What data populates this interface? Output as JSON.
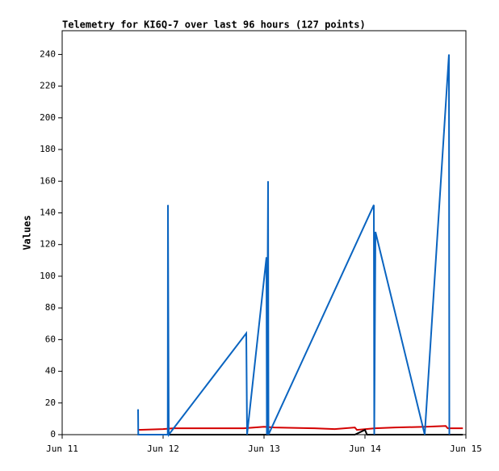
{
  "chart_data": {
    "type": "line",
    "title": "Telemetry for KI6Q-7 over last 96 hours (127 points)",
    "y_label": "Values",
    "xlim": [
      11,
      15
    ],
    "xticks": [
      {
        "value": 11,
        "label": "Jun 11"
      },
      {
        "value": 12,
        "label": "Jun 12"
      },
      {
        "value": 13,
        "label": "Jun 13"
      },
      {
        "value": 14,
        "label": "Jun 14"
      },
      {
        "value": 15,
        "label": "Jun 15"
      }
    ],
    "ylim": [
      0,
      255
    ],
    "yticks": [
      0,
      20,
      40,
      60,
      80,
      100,
      120,
      140,
      160,
      180,
      200,
      220,
      240
    ],
    "series": [
      {
        "color": "#d40000",
        "x": [
          11.75,
          12.0,
          12.1,
          12.8,
          13.0,
          13.1,
          13.5,
          13.7,
          13.9,
          13.92,
          14.1,
          14.3,
          14.6,
          14.8,
          14.82,
          14.97
        ],
        "values": [
          3,
          3.5,
          4,
          4,
          5,
          4.5,
          4,
          3.5,
          4.5,
          3,
          4,
          4.5,
          5,
          5.5,
          4,
          4
        ]
      },
      {
        "color": "#000000",
        "x": [
          11.75,
          13.9,
          14.0,
          14.02,
          14.97
        ],
        "values": [
          0,
          0,
          3,
          0,
          0
        ]
      },
      {
        "color": "#0a64c0",
        "x": [
          11.752,
          11.754,
          12.046,
          12.048,
          12.056,
          12.824,
          12.832,
          13.024,
          13.028,
          13.04,
          13.044,
          14.088,
          14.092,
          14.104,
          14.592,
          14.832,
          14.836
        ],
        "values": [
          16,
          0,
          0,
          145,
          0,
          64,
          0,
          112,
          0,
          160,
          0,
          145,
          0,
          128,
          0,
          240,
          0
        ]
      }
    ]
  }
}
